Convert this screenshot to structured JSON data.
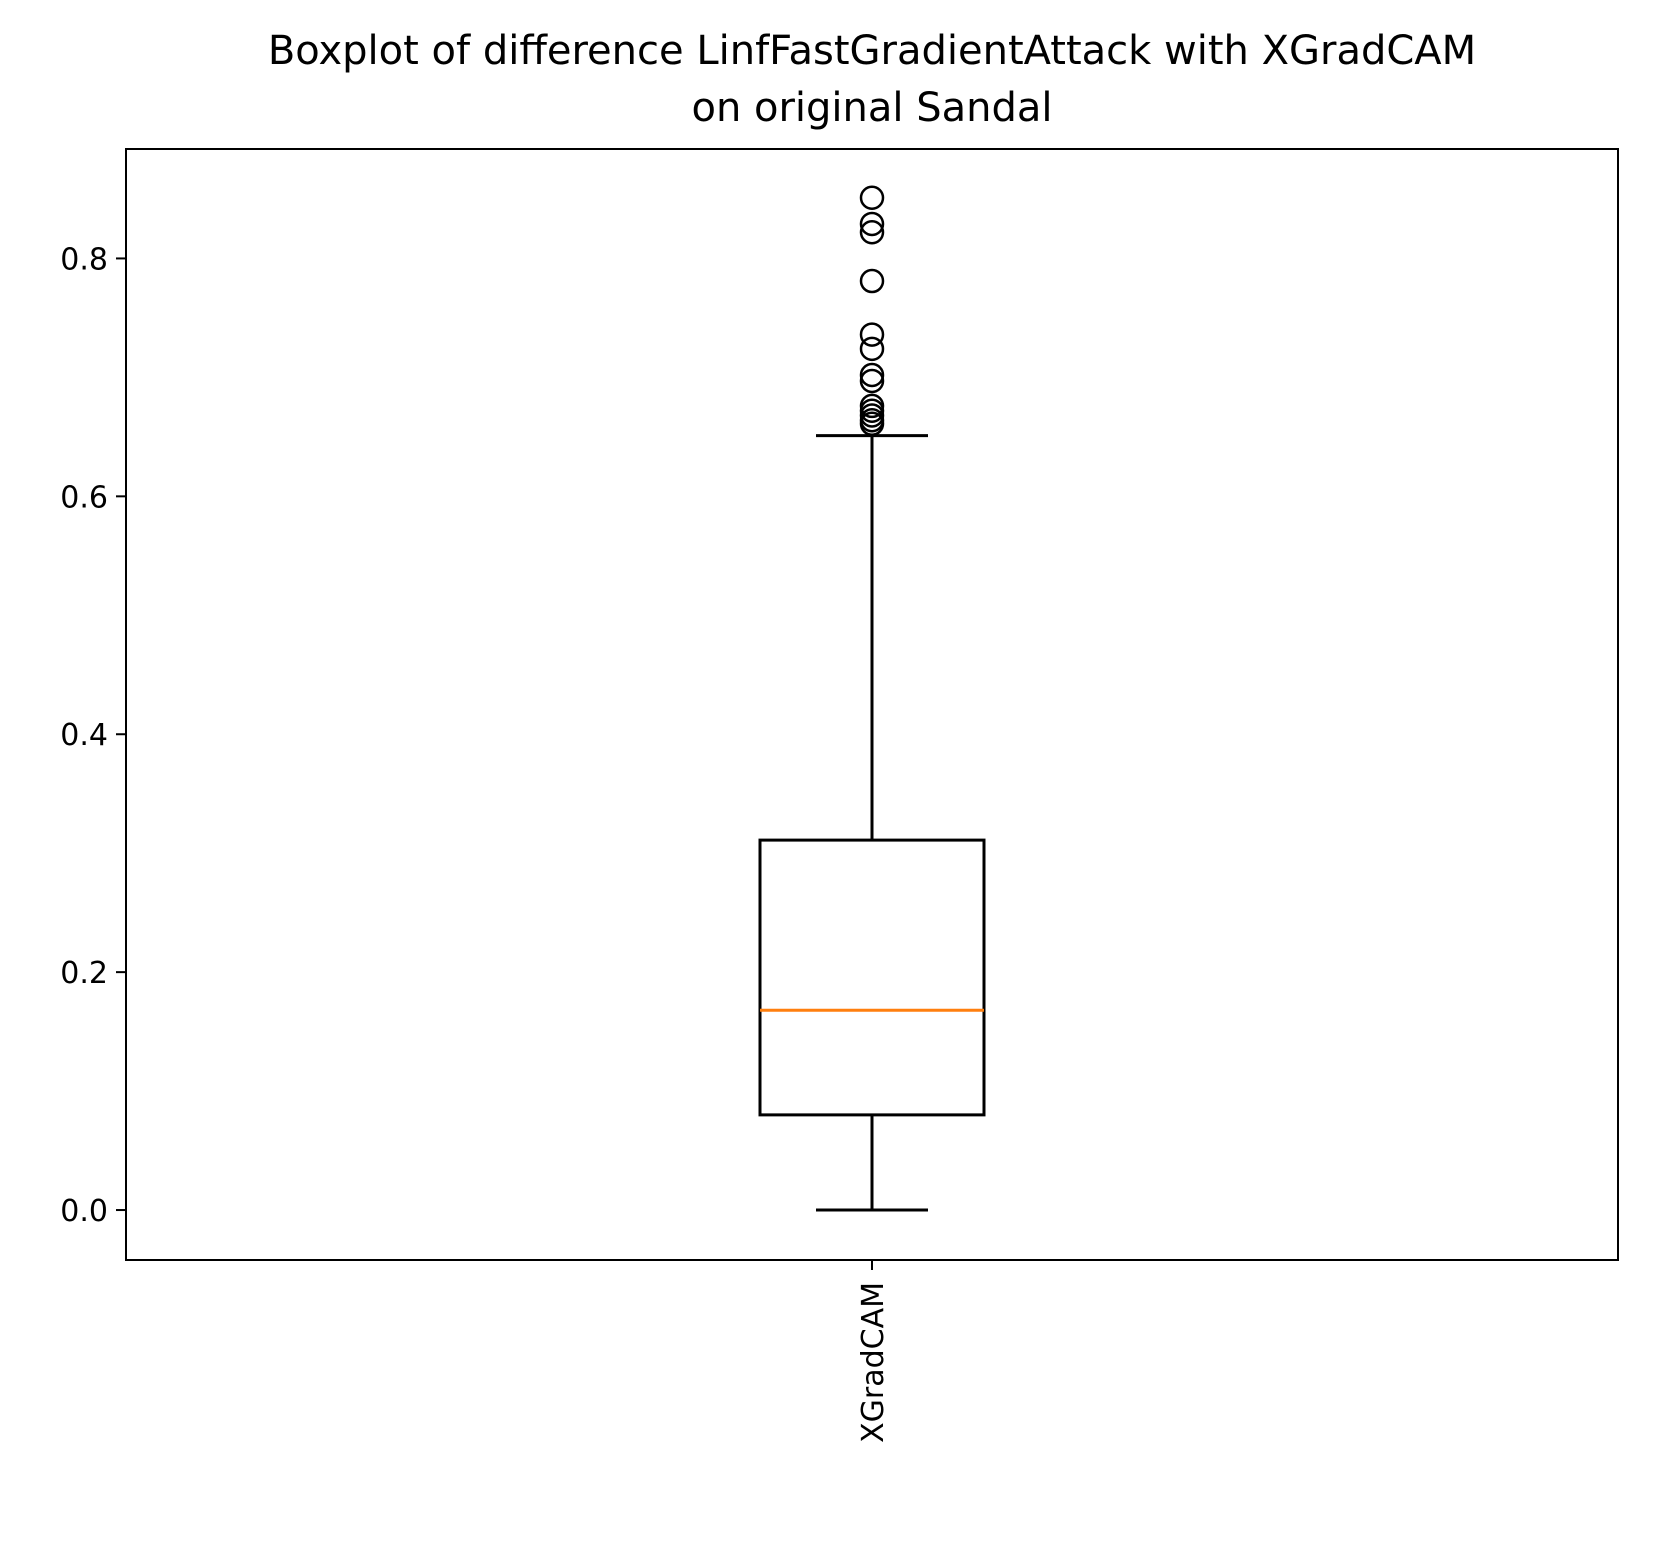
{
  "chart_data": {
    "type": "boxplot",
    "title": "Boxplot of difference LinfFastGradientAttack with XGradCAM\non original Sandal",
    "xlabel": "",
    "ylabel": "",
    "categories": [
      "XGradCAM"
    ],
    "ylim": [
      -0.042,
      0.892
    ],
    "yticks": [
      0.0,
      0.2,
      0.4,
      0.6,
      0.8
    ],
    "ytick_labels": [
      "0.0",
      "0.2",
      "0.4",
      "0.6",
      "0.8"
    ],
    "x_tick_rotation": "vertical",
    "grid": false,
    "boxes": [
      {
        "name": "XGradCAM",
        "whisker_low": 0.0,
        "q1": 0.08,
        "median": 0.168,
        "q3": 0.311,
        "whisker_high": 0.651,
        "outliers": [
          0.661,
          0.664,
          0.668,
          0.672,
          0.676,
          0.697,
          0.702,
          0.724,
          0.736,
          0.781,
          0.822,
          0.829,
          0.851
        ]
      }
    ],
    "colors": {
      "box": "#000000",
      "median": "#ff7f0e",
      "outlier": "#000000"
    }
  }
}
